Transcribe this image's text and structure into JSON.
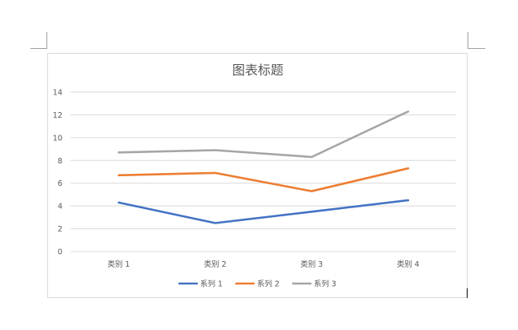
{
  "chart_data": {
    "type": "line",
    "title": "图表标题",
    "categories": [
      "类别 1",
      "类别 2",
      "类别 3",
      "类别 4"
    ],
    "ylim": [
      0,
      14
    ],
    "yticks": [
      0,
      2,
      4,
      6,
      8,
      10,
      12,
      14
    ],
    "grid": true,
    "legend_position": "bottom",
    "series": [
      {
        "name": "系列 1",
        "color": "#4472C4",
        "values": [
          4.3,
          2.5,
          3.5,
          4.5
        ]
      },
      {
        "name": "系列 2",
        "color": "#ED7D31",
        "values": [
          6.7,
          6.9,
          5.3,
          7.3
        ]
      },
      {
        "name": "系列 3",
        "color": "#A5A5A5",
        "values": [
          8.7,
          8.9,
          8.3,
          12.3
        ]
      }
    ]
  }
}
